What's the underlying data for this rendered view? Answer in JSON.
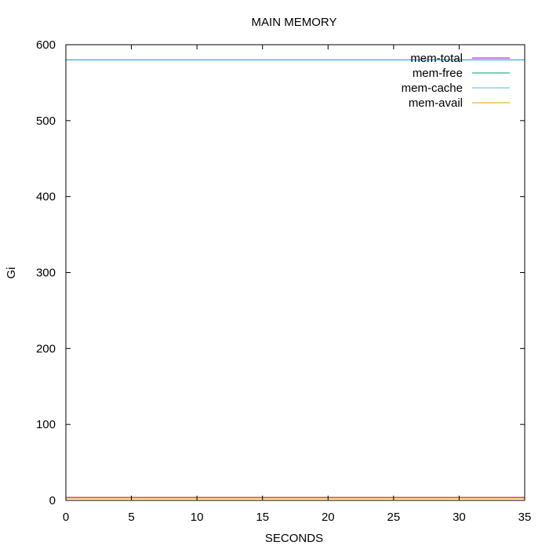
{
  "chart_data": {
    "type": "line",
    "title": "MAIN MEMORY",
    "xlabel": "SECONDS",
    "ylabel": "Gi",
    "xlim": [
      0,
      35
    ],
    "ylim": [
      0,
      600
    ],
    "x_ticks": [
      0,
      5,
      10,
      15,
      20,
      25,
      30,
      35
    ],
    "y_ticks": [
      0,
      100,
      200,
      300,
      400,
      500,
      600
    ],
    "grid": false,
    "legend_position": "top-right",
    "x": [
      0,
      35
    ],
    "series": [
      {
        "name": "mem-total",
        "color": "#9400d3",
        "values": [
          580,
          580
        ]
      },
      {
        "name": "mem-free",
        "color": "#009e73",
        "values": [
          580,
          580
        ]
      },
      {
        "name": "mem-cache",
        "color": "#56b4e9",
        "values": [
          580,
          580
        ]
      },
      {
        "name": "mem-avail",
        "color": "#e69f00",
        "values": [
          3,
          3
        ]
      },
      {
        "name": "",
        "color": "#e51e10",
        "values": [
          4,
          4
        ]
      }
    ]
  }
}
